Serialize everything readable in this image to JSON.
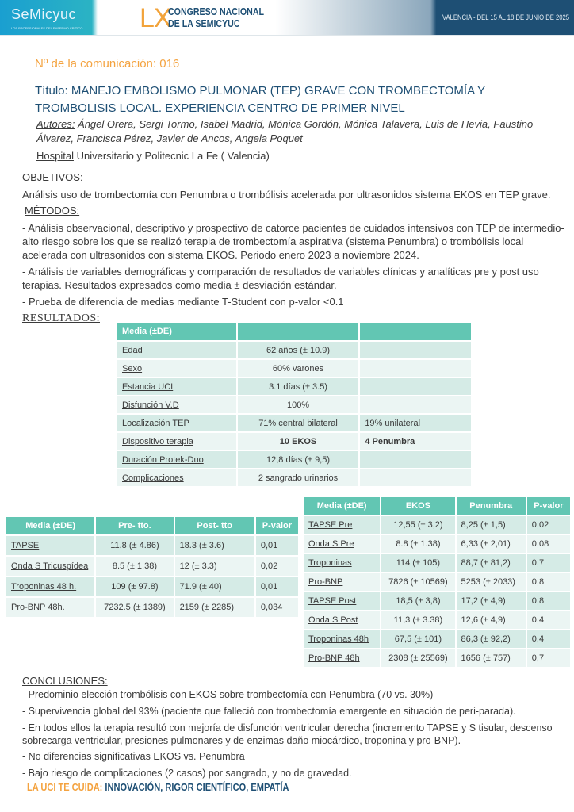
{
  "header": {
    "logo": "SeMicyuc",
    "logo_tagline": "LOS PROFESIONALES DEL ENFERMO CRÍTICO",
    "lx": "LX",
    "congress_line1": "CONGRESO NACIONAL",
    "congress_line2": "DE LA SEMICYUC",
    "venue": "VALENCIA - DEL 15 AL 18 DE JUNIO DE 2025"
  },
  "communication_number": "Nº de la comunicación: 016",
  "title": "Título: MANEJO EMBOLISMO PULMONAR (TEP) GRAVE CON TROMBECTOMÍA Y TROMBOLISIS LOCAL. EXPERIENCIA CENTRO DE PRIMER NIVEL",
  "authors_label": "Autores:",
  "authors": " Ángel Orera, Sergi Tormo, Isabel Madrid, Mónica Gordón, Mónica Talavera, Luis de Hevia, Faustino Álvarez, Francisca Pérez, Javier de Ancos, Angela Poquet",
  "hospital_label": "Hospital",
  "hospital": " Universitario y Politecnic La Fe ( Valencia)",
  "objetivos_label": "OBJETIVOS:",
  "objetivos": "Análisis uso de trombectomía con Penumbra o trombólisis acelerada por ultrasonidos sistema EKOS en TEP grave.",
  "metodos_label": "MÉTODOS:",
  "metodos": [
    "- Análisis observacional, descriptivo y prospectivo de catorce pacientes de cuidados intensivos con TEP de intermedio- alto riesgo sobre los que se realizó terapia de trombectomía aspirativa (sistema Penumbra) o trombólisis local acelerada con ultrasonidos con sistema EKOS. Periodo enero 2023 a noviembre 2024.",
    "- Análisis de variables demográficas y comparación de resultados de variables clínicas y analíticas pre y post uso terapias.  Resultados expresados como media ± desviación estándar.",
    "- Prueba de diferencia de medias mediante T-Student con p-valor <0.1"
  ],
  "resultados_label": "RESULTADOS:",
  "table_demo": {
    "headers": [
      "Media (±DE)",
      "",
      ""
    ],
    "rows": [
      [
        "Edad",
        "62 años (± 10.9)",
        ""
      ],
      [
        "Sexo",
        "60% varones",
        ""
      ],
      [
        "Estancia UCI",
        "3.1 días (± 3.5)",
        ""
      ],
      [
        "Disfunción V.D",
        "100%",
        ""
      ],
      [
        "Localización TEP",
        "71% central bilateral",
        "19% unilateral"
      ],
      [
        "Dispositivo terapia",
        "10 EKOS",
        "4 Penumbra"
      ],
      [
        "Duración Protek-Duo",
        "12,8 días (± 9,5)",
        ""
      ],
      [
        "Complicaciones",
        "2 sangrado urinarios",
        ""
      ]
    ]
  },
  "table_prepost": {
    "headers": [
      "Media (±DE)",
      "Pre- tto.",
      "Post- tto",
      "P-valor"
    ],
    "rows": [
      [
        "TAPSE",
        "11.8 (± 4.86)",
        "18.3 (± 3.6)",
        "0,01"
      ],
      [
        "Onda S Tricuspídea",
        "8.5 (± 1.38)",
        "12 (± 3.3)",
        "0,02"
      ],
      [
        "Troponinas 48 h.",
        "109 (± 97.8)",
        "71.9 (± 40)",
        "0,01"
      ],
      [
        "Pro-BNP 48h.",
        "7232.5 (± 1389)",
        "2159 (± 2285)",
        "0,034"
      ]
    ]
  },
  "table_devices": {
    "headers": [
      "Media (±DE)",
      "EKOS",
      "Penumbra",
      "P-valor"
    ],
    "rows": [
      [
        "TAPSE Pre",
        "12,55 (± 3,2)",
        "8,25 (± 1,5)",
        "0,02"
      ],
      [
        "Onda S Pre",
        "8.8 (± 1.38)",
        "6,33 (± 2,01)",
        "0,08"
      ],
      [
        "Troponinas",
        "114 (± 105)",
        "88,7 (± 81,2)",
        "0,7"
      ],
      [
        "Pro-BNP",
        "7826 (± 10569)",
        "5253 (± 2033)",
        "0,8"
      ],
      [
        "TAPSE Post",
        "18,5 (± 3,8)",
        "17,2 (± 4,9)",
        "0,8"
      ],
      [
        "Onda S Post",
        "11,3 (± 3.38)",
        "12,6 (± 4,9)",
        "0,4"
      ],
      [
        "Troponinas  48h",
        "67,5 (± 101)",
        "86,3 (± 92,2)",
        "0,4"
      ],
      [
        "Pro-BNP  48h",
        "2308 (± 25569)",
        "1656 (± 757)",
        "0,7"
      ]
    ]
  },
  "conclusiones_label": "CONCLUSIONES:",
  "conclusiones": [
    "- Predominio elección trombólisis con EKOS sobre trombectomía con Penumbra (70 vs. 30%)",
    "- Supervivencia global del 93% (paciente que falleció con trombectomía emergente en situación de peri-parada).",
    "- En todos ellos la terapia resultó con mejoría de disfunción ventricular derecha (incremento TAPSE y S tisular, descenso sobrecarga ventricular, presiones pulmonares y de enzimas daño miocárdico, troponina y pro-BNP).",
    "- No diferencias significativas EKOS vs. Penumbra",
    "- Bajo riesgo de complicaciones (2 casos) por sangrado, y no de gravedad."
  ],
  "footer": {
    "part1": "LA UCI TE CUIDA: ",
    "part2": "INNOVACIÓN, RIGOR CIENTÍFICO, EMPATÍA"
  },
  "colors": {
    "orange": "#f4a340",
    "navy": "#1e4f74",
    "teal_header": "#62c6b3"
  }
}
